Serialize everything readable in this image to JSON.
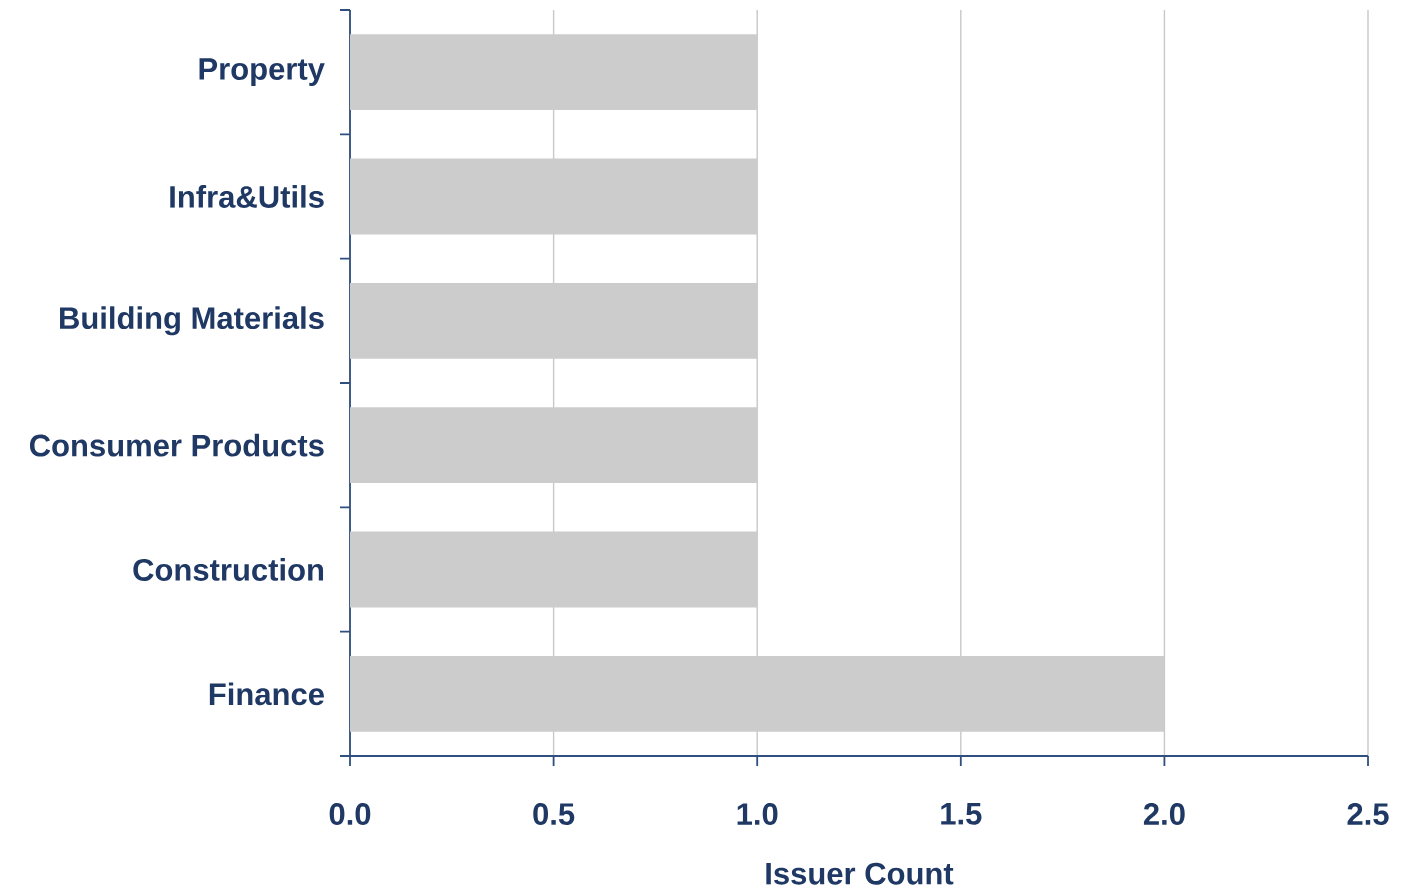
{
  "chart_data": {
    "type": "bar",
    "orientation": "horizontal",
    "categories": [
      "Property",
      "Infra&Utils",
      "Building Materials",
      "Consumer Products",
      "Construction",
      "Finance"
    ],
    "values": [
      1,
      1,
      1,
      1,
      1,
      2
    ],
    "color": "#cccccc",
    "xlabel": "Issuer Count",
    "xlim": [
      0,
      2.5
    ],
    "xticks": [
      {
        "value": 0,
        "label": "0.0"
      },
      0.5,
      {
        "value": 1,
        "label": "1.0"
      },
      1.5,
      {
        "value": 2,
        "label": "2.0"
      },
      2.5
    ],
    "grid": "x"
  }
}
